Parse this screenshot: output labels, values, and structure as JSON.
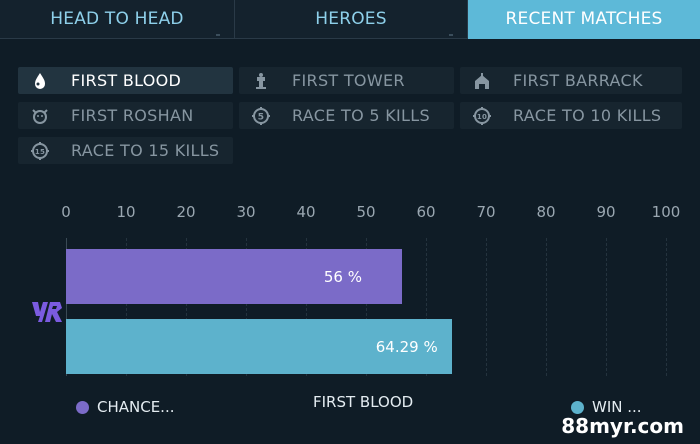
{
  "tabs": [
    {
      "label": "HEAD TO HEAD",
      "active": false
    },
    {
      "label": "HEROES",
      "active": false
    },
    {
      "label": "RECENT MATCHES",
      "active": true
    }
  ],
  "filters": [
    {
      "label": "FIRST BLOOD",
      "icon": "blood-drop-icon",
      "active": true
    },
    {
      "label": "FIRST TOWER",
      "icon": "tower-icon",
      "active": false
    },
    {
      "label": "FIRST BARRACK",
      "icon": "barrack-icon",
      "active": false
    },
    {
      "label": "FIRST ROSHAN",
      "icon": "roshan-icon",
      "active": false
    },
    {
      "label": "RACE TO 5 KILLS",
      "icon": "race-5-icon",
      "active": false
    },
    {
      "label": "RACE TO 10 KILLS",
      "icon": "race-10-icon",
      "active": false
    },
    {
      "label": "RACE TO 15 KILLS",
      "icon": "race-15-icon",
      "active": false
    }
  ],
  "chart_data": {
    "type": "bar",
    "orientation": "horizontal",
    "x_ticks": [
      "0",
      "10",
      "20",
      "30",
      "40",
      "50",
      "60",
      "70",
      "80",
      "90",
      "100"
    ],
    "xlim": [
      0,
      100
    ],
    "series": [
      {
        "name": "CHANCE...",
        "value": 56,
        "label": "56 %",
        "color": "#7b6bc8"
      },
      {
        "name": "WIN ...",
        "value": 64.29,
        "label": "64.29 %",
        "color": "#5db2cc"
      }
    ],
    "xlabel": "FIRST BLOOD",
    "grid": true,
    "legend": "bottom"
  },
  "watermark": "88myr.com"
}
